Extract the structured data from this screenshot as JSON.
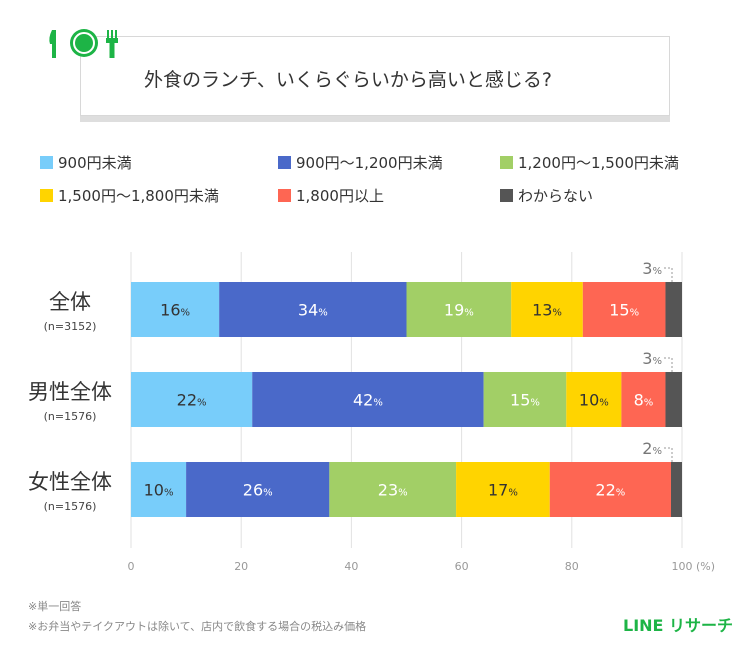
{
  "title": "外食のランチ、いくらぐらいから高いと感じる?",
  "chart_data": {
    "type": "bar",
    "orientation": "horizontal-stacked-100",
    "categories": [
      "全体",
      "男性全体",
      "女性全体"
    ],
    "sample_sizes": [
      "(n=3152)",
      "(n=1576)",
      "(n=1576)"
    ],
    "series": [
      {
        "name": "900円未満",
        "color": "#78cdfa",
        "values": [
          16,
          22,
          10
        ]
      },
      {
        "name": "900円～1,200円未満",
        "color": "#4a69c9",
        "values": [
          34,
          42,
          26
        ]
      },
      {
        "name": "1,200円～1,500円未満",
        "color": "#a2cf66",
        "values": [
          19,
          15,
          23
        ]
      },
      {
        "name": "1,500円～1,800円未満",
        "color": "#ffd400",
        "values": [
          13,
          10,
          17
        ]
      },
      {
        "name": "1,800円以上",
        "color": "#fe6653",
        "values": [
          15,
          8,
          22
        ]
      },
      {
        "name": "わからない",
        "color": "#555555",
        "values": [
          3,
          3,
          2
        ]
      }
    ],
    "xlim": [
      0,
      100
    ],
    "xticks": [
      "0",
      "20",
      "40",
      "60",
      "80",
      "100"
    ],
    "xunit": "(%)",
    "label_suffix": "%",
    "grid": true,
    "legend_position": "top"
  },
  "notes": [
    "※単一回答",
    "※お弁当やテイクアウトは除いて、店内で飲食する場合の税込み価格"
  ],
  "logo": "LINE リサーチ"
}
